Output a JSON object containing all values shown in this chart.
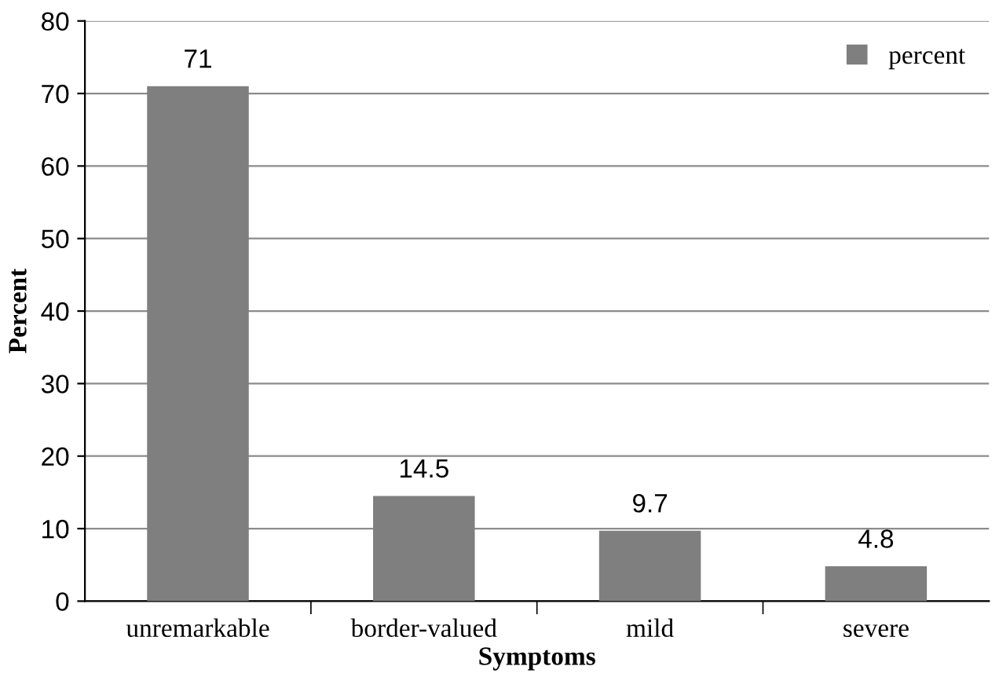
{
  "chart_data": {
    "type": "bar",
    "xlabel": "Symptoms",
    "ylabel": "Percent",
    "categories": [
      "unremarkable",
      "border-valued",
      "mild",
      "severe"
    ],
    "series": [
      {
        "name": "percent",
        "color": "#7f7f7f",
        "values": [
          71,
          14.5,
          9.7,
          4.8
        ]
      }
    ],
    "ylim": [
      0,
      80
    ],
    "yticks": [
      0,
      10,
      20,
      30,
      40,
      50,
      60,
      70,
      80
    ],
    "grid": "y",
    "legend": "top right",
    "data_labels": true
  }
}
